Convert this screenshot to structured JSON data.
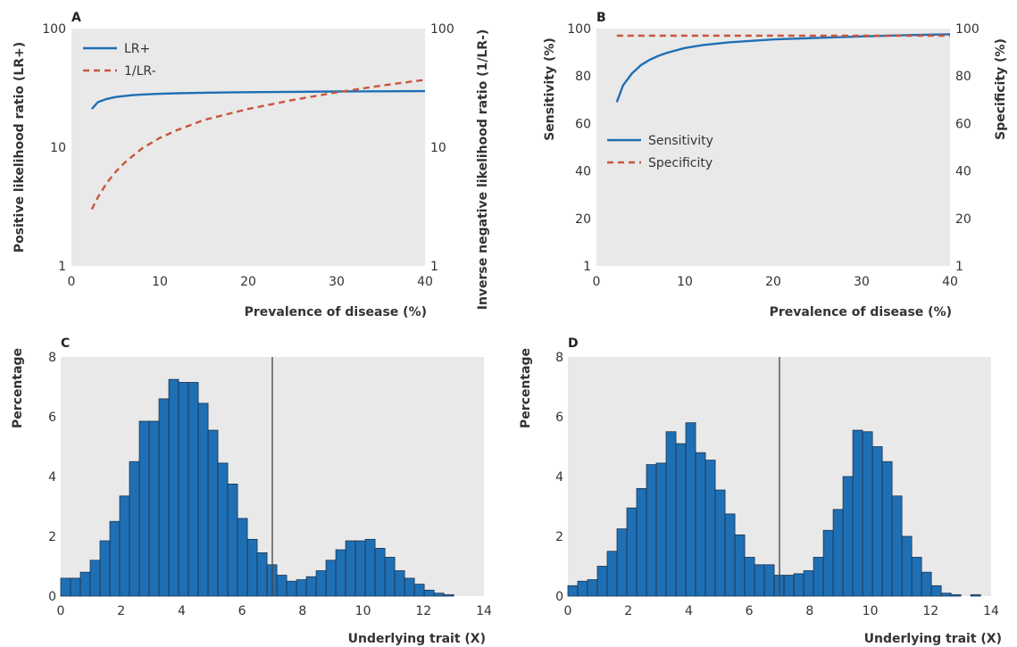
{
  "colors": {
    "blue": "#1f6fb4",
    "red": "#c8553d",
    "panel_bg": "#e9e9ea",
    "bar_edge": "#1a3550",
    "cutoff_line": "#444444"
  },
  "chart_data": [
    {
      "panel": "A",
      "type": "line",
      "xlabel": "Prevalence of disease (%)",
      "ylabel": "Positive likelihood ratio (LR+)",
      "ylabel_right": "Inverse negative likelihood ratio (1/LR-)",
      "xlim": [
        0,
        40
      ],
      "ylim": [
        1,
        100
      ],
      "yscale": "log",
      "x_ticks": [
        "0",
        "10",
        "20",
        "30",
        "40"
      ],
      "y_ticks": [
        "1",
        "10",
        "100"
      ],
      "y_ticks_right": [
        "1",
        "10",
        "100"
      ],
      "legend_position": "top-left",
      "series": [
        {
          "name": "LR+",
          "style": "solid",
          "color": "#1f6fb4",
          "x": [
            2.3,
            3,
            4,
            5,
            6,
            7,
            8,
            10,
            12,
            15,
            20,
            25,
            30,
            35,
            40
          ],
          "y": [
            21,
            24,
            25.5,
            26.5,
            27,
            27.5,
            27.8,
            28.2,
            28.5,
            28.8,
            29.1,
            29.3,
            29.5,
            29.6,
            29.7
          ]
        },
        {
          "name": "1/LR-",
          "style": "dashed",
          "color": "#c8553d",
          "x": [
            2.3,
            3,
            4,
            5,
            6,
            8,
            10,
            12,
            15,
            20,
            25,
            30,
            35,
            40
          ],
          "y": [
            3,
            3.8,
            5,
            6.2,
            7.4,
            9.8,
            12,
            14,
            17,
            21,
            25,
            29,
            33,
            37
          ]
        }
      ]
    },
    {
      "panel": "B",
      "type": "line",
      "xlabel": "Prevalence of disease (%)",
      "ylabel": "Sensitivity (%)",
      "ylabel_right": "Specificity (%)",
      "xlim": [
        0,
        40
      ],
      "ylim": [
        0,
        100
      ],
      "x_ticks": [
        "0",
        "10",
        "20",
        "30",
        "40"
      ],
      "y_ticks": [
        1,
        20,
        40,
        60,
        80,
        100
      ],
      "y_ticks_right": [
        1,
        20,
        40,
        60,
        80,
        100
      ],
      "legend_position": "center-left",
      "series": [
        {
          "name": "Sensitivity",
          "style": "solid",
          "color": "#1f6fb4",
          "x": [
            2.3,
            3,
            4,
            5,
            6,
            7,
            8,
            10,
            12,
            15,
            20,
            25,
            30,
            35,
            40
          ],
          "y": [
            69,
            76,
            81,
            84.5,
            86.8,
            88.5,
            89.8,
            91.8,
            93,
            94.2,
            95.4,
            96.1,
            96.7,
            97.2,
            97.6
          ]
        },
        {
          "name": "Specificity",
          "style": "dashed",
          "color": "#c8553d",
          "x": [
            2.3,
            10,
            20,
            30,
            40
          ],
          "y": [
            97,
            97,
            97,
            97,
            97
          ]
        }
      ]
    },
    {
      "panel": "C",
      "type": "bar",
      "xlabel": "Underlying trait (X)",
      "ylabel": "Percentage",
      "xlim": [
        0,
        14
      ],
      "ylim": [
        0,
        8
      ],
      "x_ticks": [
        "0",
        "2",
        "4",
        "6",
        "8",
        "10",
        "12",
        "14"
      ],
      "y_ticks": [
        "0",
        "2",
        "4",
        "6",
        "8"
      ],
      "bin_width": 0.325,
      "cutoff": 7,
      "values": [
        0.6,
        0.6,
        0.8,
        1.2,
        1.85,
        2.5,
        3.35,
        4.5,
        5.85,
        5.85,
        6.6,
        7.25,
        7.15,
        7.15,
        6.45,
        5.55,
        4.45,
        3.75,
        2.6,
        1.9,
        1.45,
        1.05,
        0.7,
        0.5,
        0.55,
        0.65,
        0.85,
        1.2,
        1.55,
        1.85,
        1.85,
        1.9,
        1.6,
        1.3,
        0.85,
        0.6,
        0.4,
        0.2,
        0.1,
        0.05
      ]
    },
    {
      "panel": "D",
      "type": "bar",
      "xlabel": "Underlying trait (X)",
      "ylabel": "Percentage",
      "xlim": [
        0,
        14
      ],
      "ylim": [
        0,
        8
      ],
      "x_ticks": [
        "0",
        "2",
        "4",
        "6",
        "8",
        "10",
        "12",
        "14"
      ],
      "y_ticks": [
        "0",
        "2",
        "4",
        "6",
        "8"
      ],
      "bin_width": 0.325,
      "cutoff": 7,
      "values": [
        0.35,
        0.5,
        0.55,
        1.0,
        1.5,
        2.25,
        2.95,
        3.6,
        4.4,
        4.45,
        5.5,
        5.1,
        5.8,
        4.8,
        4.55,
        3.55,
        2.75,
        2.05,
        1.3,
        1.05,
        1.05,
        0.7,
        0.7,
        0.75,
        0.85,
        1.3,
        2.2,
        2.9,
        4.0,
        5.55,
        5.5,
        5.0,
        4.5,
        3.35,
        2.0,
        1.3,
        0.8,
        0.35,
        0.1,
        0.05,
        0.0,
        0.05
      ]
    }
  ]
}
